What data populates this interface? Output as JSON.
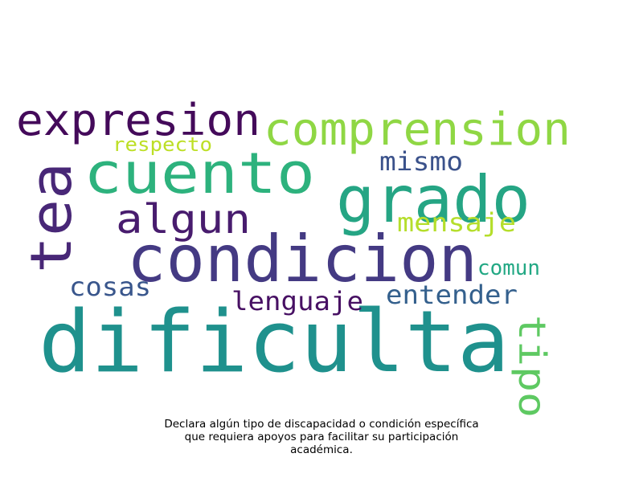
{
  "words": [
    {
      "text": "dificulta",
      "color": "#1f918d"
    },
    {
      "text": "condicion",
      "color": "#443a83"
    },
    {
      "text": "grado",
      "color": "#25a584"
    },
    {
      "text": "cuento",
      "color": "#2db27d"
    },
    {
      "text": "comprension",
      "color": "#8fd744"
    },
    {
      "text": "expresion",
      "color": "#440a5a"
    },
    {
      "text": "tea",
      "color": "#482777"
    },
    {
      "text": "algun",
      "color": "#481c6e"
    },
    {
      "text": "tipo",
      "color": "#5ec962"
    },
    {
      "text": "entender",
      "color": "#34608d"
    },
    {
      "text": "lenguaje",
      "color": "#471063"
    },
    {
      "text": "mensaje",
      "color": "#b5de2b"
    },
    {
      "text": "cosas",
      "color": "#39568c"
    },
    {
      "text": "mismo",
      "color": "#3b528b"
    },
    {
      "text": "comun",
      "color": "#22a884"
    },
    {
      "text": "respecto",
      "color": "#bddf26"
    }
  ],
  "caption": {
    "line1": "Declara algún tipo de discapacidad o condición específica",
    "line2": "que requiera apoyos para facilitar su participación",
    "line3": "académica."
  }
}
